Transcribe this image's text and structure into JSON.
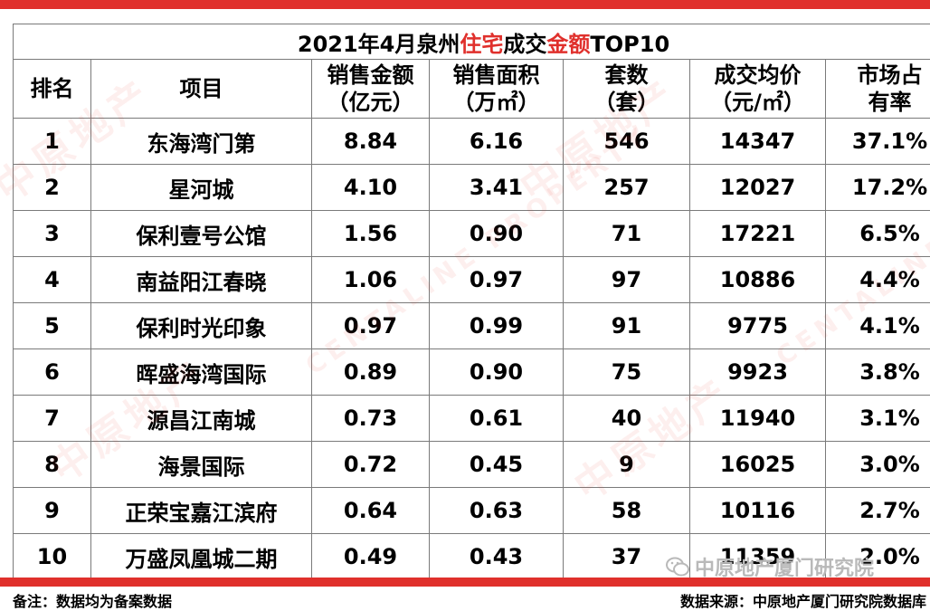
{
  "title": {
    "part1": "2021年4月泉州",
    "part2": "住宅",
    "part3": "成交",
    "part4": "金额",
    "part5": "TOP10"
  },
  "headers": {
    "rank": "排名",
    "project": "项目",
    "amount_l1": "销售金额",
    "amount_l2": "（亿元）",
    "area_l1": "销售面积",
    "area_l2": "（万㎡）",
    "units_l1": "套数",
    "units_l2": "（套）",
    "price_l1": "成交均价",
    "price_l2": "（元/㎡）",
    "share_l1": "市场占",
    "share_l2": "有率"
  },
  "rows": [
    {
      "rank": "1",
      "project": "东海湾门第",
      "amount": "8.84",
      "area": "6.16",
      "units": "546",
      "price": "14347",
      "share": "37.1%"
    },
    {
      "rank": "2",
      "project": "星河城",
      "amount": "4.10",
      "area": "3.41",
      "units": "257",
      "price": "12027",
      "share": "17.2%"
    },
    {
      "rank": "3",
      "project": "保利壹号公馆",
      "amount": "1.56",
      "area": "0.90",
      "units": "71",
      "price": "17221",
      "share": "6.5%"
    },
    {
      "rank": "4",
      "project": "南益阳江春晓",
      "amount": "1.06",
      "area": "0.97",
      "units": "97",
      "price": "10886",
      "share": "4.4%"
    },
    {
      "rank": "5",
      "project": "保利时光印象",
      "amount": "0.97",
      "area": "0.99",
      "units": "91",
      "price": "9775",
      "share": "4.1%"
    },
    {
      "rank": "6",
      "project": "晖盛海湾国际",
      "amount": "0.89",
      "area": "0.90",
      "units": "75",
      "price": "9923",
      "share": "3.8%"
    },
    {
      "rank": "7",
      "project": "源昌江南城",
      "amount": "0.73",
      "area": "0.61",
      "units": "40",
      "price": "11940",
      "share": "3.1%"
    },
    {
      "rank": "8",
      "project": "海景国际",
      "amount": "0.72",
      "area": "0.45",
      "units": "9",
      "price": "16025",
      "share": "3.0%"
    },
    {
      "rank": "9",
      "project": "正荣宝嘉江滨府",
      "amount": "0.64",
      "area": "0.63",
      "units": "58",
      "price": "10116",
      "share": "2.7%"
    },
    {
      "rank": "10",
      "project": "万盛凤凰城二期",
      "amount": "0.49",
      "area": "0.43",
      "units": "37",
      "price": "11359",
      "share": "2.0%"
    }
  ],
  "footer": {
    "note": "备注：数据均为备案数据",
    "source": "数据来源：中原地产厦门研究院数据库",
    "wechat_account": "中原地产厦门研究院"
  },
  "watermark": {
    "brand_cn": "中原地产",
    "brand_en": "CENTALINE PROPERTY"
  },
  "colors": {
    "accent": "#e0302c",
    "border": "#7a7a7a"
  }
}
